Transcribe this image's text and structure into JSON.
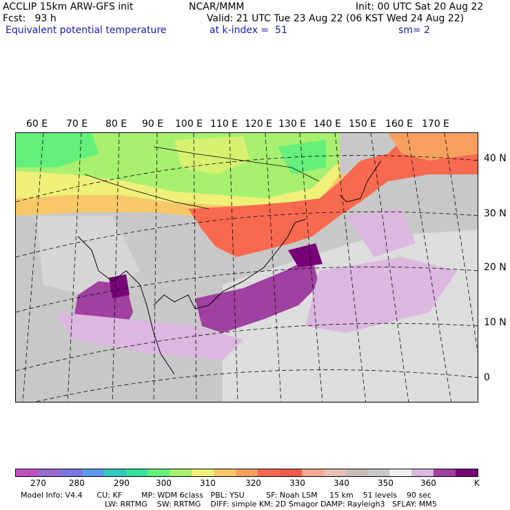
{
  "header": {
    "line1_left": "ACCLIP 15km ARW-GFS init",
    "line1_mid": "NCAR/MMM",
    "line1_right": "Init: 00 UTC Sat 20 Aug 22",
    "line2_left": "Fcst:   93 h",
    "line2_right": "Valid: 21 UTC Tue 23 Aug 22 (06 KST Wed 24 Aug 22)",
    "line3_left": "Equivalent potential temperature",
    "line3_mid": "at k-index =  51",
    "line3_right": "sm= 2"
  },
  "longitude_labels": [
    "60 E",
    "70 E",
    "80 E",
    "90 E",
    "100 E",
    "110 E",
    "120 E",
    "130 E",
    "140 E",
    "150 E",
    "160 E",
    "170 E"
  ],
  "latitude_labels": [
    "40 N",
    "30 N",
    "20 N",
    "10 N",
    "0"
  ],
  "colorbar": {
    "colors": [
      "#c050c0",
      "#9a6ad0",
      "#7a78e0",
      "#5b9ae8",
      "#33c8c0",
      "#38e0a0",
      "#64f07a",
      "#a8f070",
      "#eef078",
      "#f8c868",
      "#f8a060",
      "#f86a50",
      "#f05a48",
      "#f6a890",
      "#e6c0b0",
      "#c8bcb8",
      "#c8c8c8",
      "#f0f0f0",
      "#dcb8e0",
      "#a040a0",
      "#780078"
    ],
    "ticks": [
      "270",
      "280",
      "290",
      "300",
      "310",
      "320",
      "330",
      "340",
      "350",
      "360"
    ],
    "unit": "K"
  },
  "footer": {
    "line1": "Model Info: V4.4      CU: KF        MP: WDM 6class   PBL: YSU         SF: Noah LSM     15 km    51 levels    90 sec",
    "line2": "LW: RRTMG    SW: RRTMG    DIFF: simple KM: 2D Smagor DAMP: Rayleigh3   SFLAY: MM5"
  }
}
